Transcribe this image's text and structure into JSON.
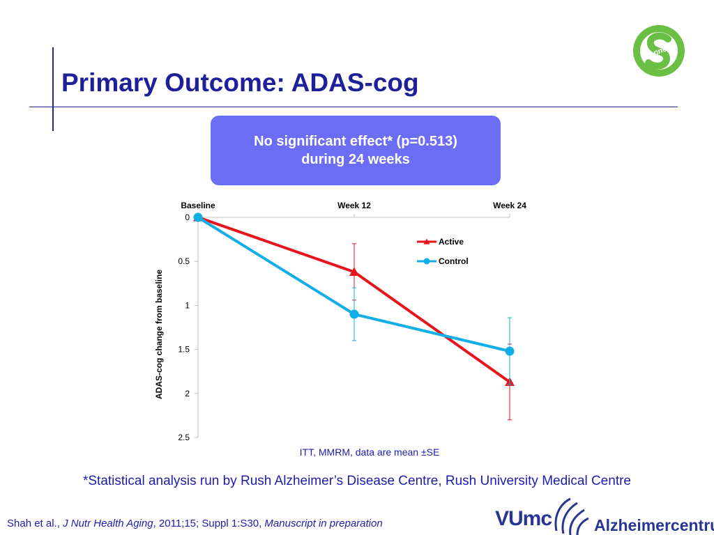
{
  "slide": {
    "title": "Primary Outcome: ADAS-cog",
    "callout_line1": "No significant effect* (p=0.513)",
    "callout_line2": "during 24 weeks",
    "footnote": "*Statistical analysis run by Rush Alzheimer’s Disease Centre, Rush University Medical Centre",
    "citation": {
      "authors": "Shah et al., ",
      "journal": "J Nutr Health Aging",
      "details": ", 2011;15; Suppl 1:S30, ",
      "status": "Manuscript in preparation"
    },
    "logo_top": "connect",
    "logo_vumc": "VUmc",
    "logo_alz": "Alzheimercentrum"
  },
  "colors": {
    "title": "#1f1f9a",
    "callout_bg": "#6b6ef5",
    "active": "#e8141c",
    "control": "#12aee6",
    "footnote": "#1c1cb0",
    "logo_green": "#6cbf45"
  },
  "chart_data": {
    "type": "line",
    "title": "",
    "xlabel": "",
    "ylabel": "ADAS-cog change from baseline",
    "categories": [
      "Baseline",
      "Week 12",
      "Week 24"
    ],
    "ylim": [
      0,
      2.5
    ],
    "y_inverted": true,
    "yticks": [
      "0",
      "0.5",
      "1",
      "1.5",
      "2",
      "2.5"
    ],
    "x_axis_position": "top",
    "legend_position": "right",
    "series": [
      {
        "name": "Active",
        "marker": "triangle",
        "values": [
          0,
          0.62,
          1.87
        ],
        "error": [
          0,
          0.32,
          0.43
        ]
      },
      {
        "name": "Control",
        "marker": "circle",
        "values": [
          0,
          1.1,
          1.52
        ],
        "error": [
          0,
          0.3,
          0.38
        ]
      }
    ],
    "annotation": "ITT, MMRM, data are mean ±SE"
  }
}
